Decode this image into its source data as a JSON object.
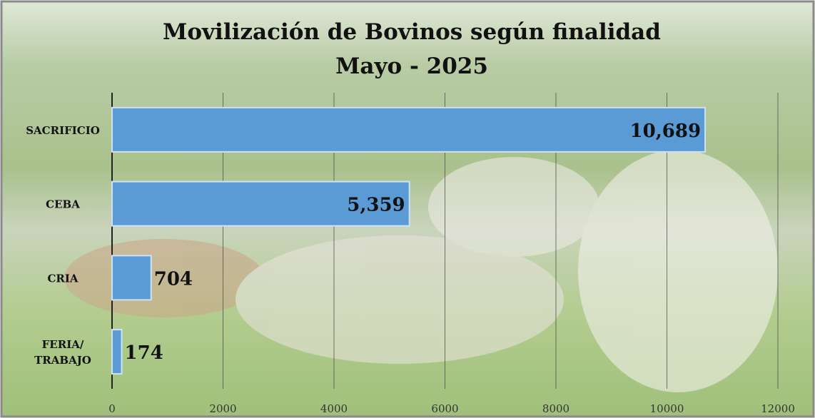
{
  "chart_data": {
    "type": "barh",
    "title": "Movilización de Bovinos según finalidad",
    "subtitle": "Mayo - 2025",
    "categories": [
      "SACRIFICIO",
      "CEBA",
      "CRIA",
      "FERIA/ TRABAJO"
    ],
    "values": [
      10689,
      5359,
      704,
      174
    ],
    "value_labels": [
      "10,689",
      "5,359",
      "704",
      "174"
    ],
    "color": "#5b9bd5",
    "xlim": [
      0,
      12000
    ],
    "xticks": [
      0,
      2000,
      4000,
      6000,
      8000,
      10000,
      12000
    ],
    "grid": true
  }
}
